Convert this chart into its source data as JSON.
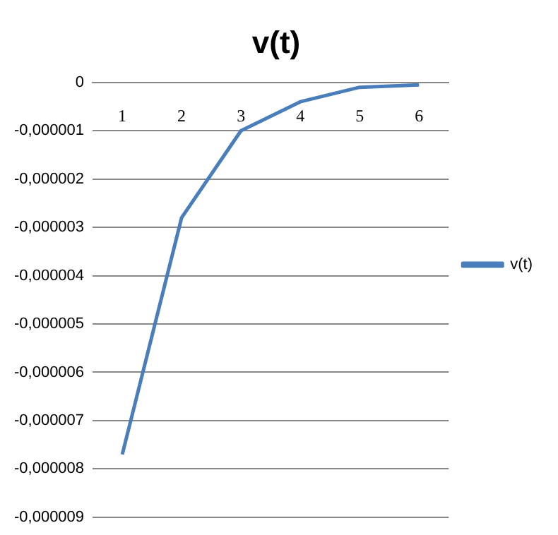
{
  "chart_data": {
    "type": "line",
    "title": "v(t)",
    "categories": [
      "1",
      "2",
      "3",
      "4",
      "5",
      "6"
    ],
    "series": [
      {
        "name": "v(t)",
        "color": "#4a7ebb",
        "values": [
          -7.7e-06,
          -2.8e-06,
          -1e-06,
          -4e-07,
          -1e-07,
          -5e-08
        ]
      }
    ],
    "ylim": [
      -9e-06,
      0
    ],
    "yticks": [
      {
        "value": -9e-06,
        "label": "-0,000009"
      },
      {
        "value": -8e-06,
        "label": "-0,000008"
      },
      {
        "value": -7e-06,
        "label": "-0,000007"
      },
      {
        "value": -6e-06,
        "label": "-0,000006"
      },
      {
        "value": -5e-06,
        "label": "-0,000005"
      },
      {
        "value": -4e-06,
        "label": "-0,000004"
      },
      {
        "value": -3e-06,
        "label": "-0,000003"
      },
      {
        "value": -2e-06,
        "label": "-0,000002"
      },
      {
        "value": -1e-06,
        "label": "-0,000001"
      },
      {
        "value": 0,
        "label": "0"
      }
    ],
    "grid": "y",
    "legend": "right",
    "marker": "none",
    "line_style": "solid"
  }
}
